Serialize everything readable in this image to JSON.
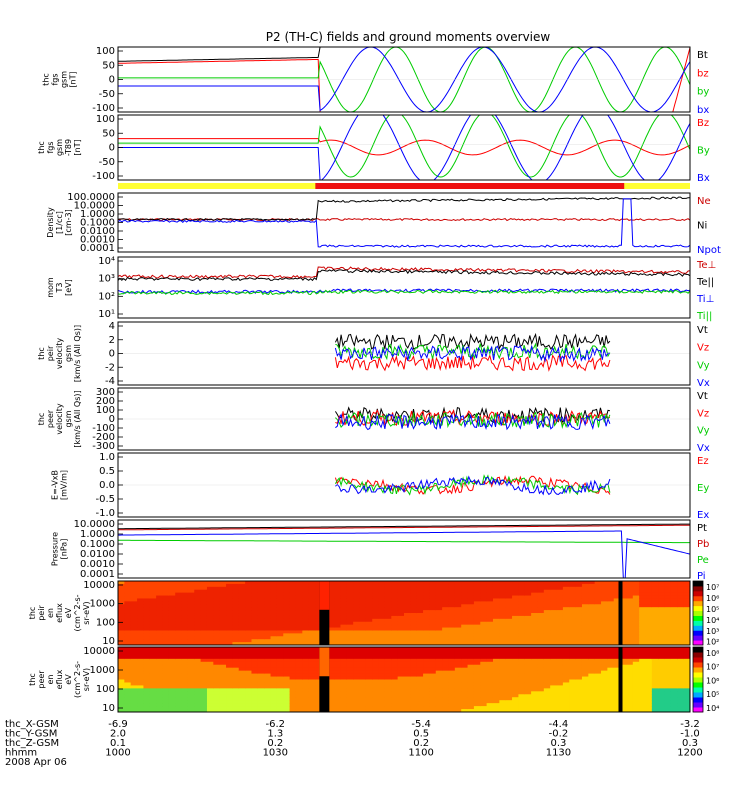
{
  "title": "P2 (TH-C) fields and ground moments overview",
  "chart_data": [
    {
      "type": "line",
      "name": "fgs",
      "ylabel": [
        "thc",
        "fgs",
        "gsm",
        "[nT]"
      ],
      "ylim": [
        -100,
        100
      ],
      "yticks": [
        "100",
        "50",
        "0",
        "-50",
        "-100"
      ],
      "series": [
        {
          "name": "Bt",
          "color": "#000000"
        },
        {
          "name": "bz",
          "color": "#ff0000"
        },
        {
          "name": "by",
          "color": "#00cc00"
        },
        {
          "name": "bx",
          "color": "#0000ff"
        }
      ]
    },
    {
      "type": "line",
      "name": "fgs_t89",
      "ylabel": [
        "thc",
        "fgs",
        "gsm",
        "-T89",
        "[nT]"
      ],
      "ylim": [
        -120,
        100
      ],
      "yticks": [
        "100",
        "50",
        "0",
        "-50",
        "-100"
      ],
      "series": [
        {
          "name": "Bz",
          "color": "#ff0000"
        },
        {
          "name": "By",
          "color": "#00cc00"
        },
        {
          "name": "Bx",
          "color": "#0000ff"
        }
      ]
    },
    {
      "type": "line",
      "name": "density",
      "ylabel": [
        "Density",
        "[1/cc]",
        "[cm-3]"
      ],
      "log": true,
      "yticks": [
        "100.0000",
        "10.0000",
        "1.0000",
        "0.1000",
        "0.0100",
        "0.0010",
        "0.0001"
      ],
      "series": [
        {
          "name": "Ne",
          "color": "#cc0000"
        },
        {
          "name": "Ni",
          "color": "#000000"
        },
        {
          "name": "Npot",
          "color": "#0000ff"
        }
      ]
    },
    {
      "type": "line",
      "name": "temperature",
      "ylabel": [
        "mom",
        "T3",
        "[eV]"
      ],
      "log": true,
      "yticks": [
        "10⁴",
        "10³",
        "10²",
        "10¹"
      ],
      "series": [
        {
          "name": "Te⊥",
          "color": "#cc0000"
        },
        {
          "name": "Te||",
          "color": "#000000"
        },
        {
          "name": "Ti⊥",
          "color": "#0000ff"
        },
        {
          "name": "Ti||",
          "color": "#00cc00"
        }
      ]
    },
    {
      "type": "line",
      "name": "peir_velocity",
      "ylabel": [
        "thc",
        "peir",
        "velocity",
        "gsm",
        "[km/s (All Qs)]"
      ],
      "ylim": [
        -4,
        4
      ],
      "yticks": [
        "4",
        "2",
        "0",
        "-2",
        "-4"
      ],
      "series": [
        {
          "name": "Vt",
          "color": "#000000"
        },
        {
          "name": "Vz",
          "color": "#ff0000"
        },
        {
          "name": "Vy",
          "color": "#00cc00"
        },
        {
          "name": "Vx",
          "color": "#0000ff"
        }
      ]
    },
    {
      "type": "line",
      "name": "peer_velocity",
      "ylabel": [
        "thc",
        "peer",
        "velocity",
        "gsm",
        "[km/s (All Qs)]"
      ],
      "ylim": [
        -300,
        300
      ],
      "yticks": [
        "300",
        "200",
        "100",
        "0",
        "-100",
        "-200",
        "-300"
      ],
      "series": [
        {
          "name": "Vt",
          "color": "#000000"
        },
        {
          "name": "Vz",
          "color": "#ff0000"
        },
        {
          "name": "Vy",
          "color": "#00cc00"
        },
        {
          "name": "Vx",
          "color": "#0000ff"
        }
      ]
    },
    {
      "type": "line",
      "name": "efield",
      "ylabel": [
        "E=-VxB",
        "[mV/m]"
      ],
      "ylim": [
        -1,
        1
      ],
      "yticks": [
        "1.0",
        "0.5",
        "0.0",
        "-0.5",
        "-1.0"
      ],
      "series": [
        {
          "name": "Ez",
          "color": "#ff0000"
        },
        {
          "name": "Ey",
          "color": "#00cc00"
        },
        {
          "name": "Ex",
          "color": "#0000ff"
        }
      ]
    },
    {
      "type": "line",
      "name": "pressure",
      "ylabel": [
        "Pressure",
        "[nPa]"
      ],
      "log": true,
      "yticks": [
        "10.0000",
        "1.0000",
        "0.1000",
        "0.0100",
        "0.0010",
        "0.0001"
      ],
      "series": [
        {
          "name": "Pt",
          "color": "#000000"
        },
        {
          "name": "Pb",
          "color": "#cc0000"
        },
        {
          "name": "Pe",
          "color": "#00cc00"
        },
        {
          "name": "Pi",
          "color": "#0000ff"
        }
      ]
    },
    {
      "type": "heatmap",
      "name": "peir_en_eflux",
      "ylabel": [
        "thc",
        "peir",
        "en",
        "eflux",
        "eV",
        "(cm^2-s-",
        "sr-eV)"
      ],
      "yticks": [
        "10000",
        "1000",
        "100",
        "10"
      ],
      "colorbar": [
        "10⁷",
        "10⁶",
        "10⁵",
        "10⁴",
        "10³",
        "10²"
      ]
    },
    {
      "type": "heatmap",
      "name": "peer_en_eflux",
      "ylabel": [
        "thc",
        "peer",
        "en",
        "eflux",
        "eV",
        "(cm^2-s-",
        "sr-eV)"
      ],
      "yticks": [
        "10000",
        "1000",
        "100",
        "10"
      ],
      "colorbar": [
        "10⁸",
        "10⁷",
        "10⁶",
        "10⁵",
        "10⁴"
      ]
    }
  ],
  "xaxis": {
    "rows": [
      {
        "label": "thc_X-GSM",
        "values": [
          "-6.9",
          "-6.2",
          "-5.4",
          "-4.4",
          "-3.2"
        ]
      },
      {
        "label": "thc_Y-GSM",
        "values": [
          "2.0",
          "1.3",
          "0.5",
          "-0.2",
          "-1.0"
        ]
      },
      {
        "label": "thc_Z-GSM",
        "values": [
          "0.1",
          "0.2",
          "0.2",
          "0.3",
          "0.3"
        ]
      },
      {
        "label": "hhmm",
        "values": [
          "1000",
          "1030",
          "1100",
          "1130",
          "1200"
        ]
      }
    ],
    "date": "2008 Apr 06"
  }
}
